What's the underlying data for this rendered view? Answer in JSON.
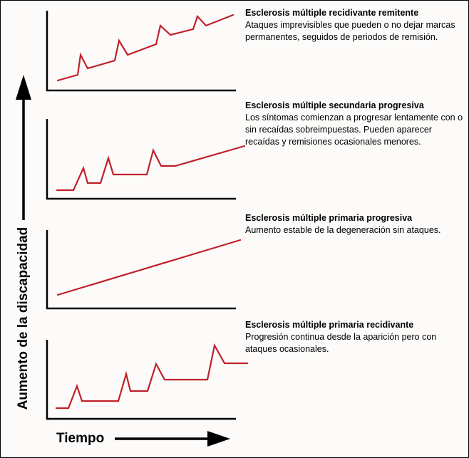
{
  "axes": {
    "y_label": "Aumento de la discapacidad",
    "x_label": "Tiempo"
  },
  "line_color": "#c0202a",
  "panels": [
    {
      "title": "Esclerosis múltiple recidivante remitente",
      "description": "Ataques imprevisibles que pueden o no dejar marcas permanentes, seguidos de periodos de remisión."
    },
    {
      "title": "Esclerosis múltiple secundaria progresiva",
      "description": "Los síntomas comienzan a progresar lentamente con o sin recaídas sobreimpuestas. Pueden aparecer recaídas y remisiones ocasionales menores."
    },
    {
      "title": "Esclerosis múltiple primaria progresiva",
      "description": "Aumento estable de la degeneración sin ataques."
    },
    {
      "title": "Esclerosis múltiple primaria recidivante",
      "description": "Progresión continua desde la aparición pero con ataques ocasionales."
    }
  ]
}
